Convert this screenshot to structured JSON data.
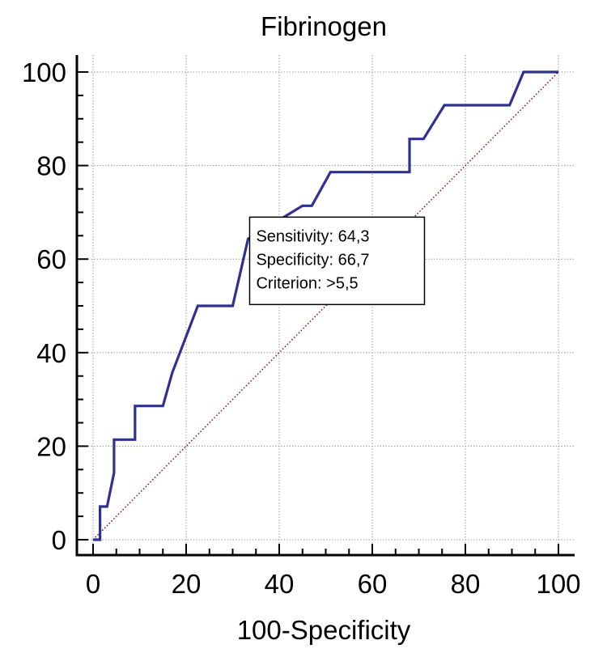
{
  "chart_data": {
    "type": "line",
    "title": "Fibrinogen",
    "xlabel": "100-Specificity",
    "ylabel": "",
    "xlim": [
      0,
      100
    ],
    "ylim": [
      0,
      100
    ],
    "xticks": [
      "0",
      "20",
      "40",
      "60",
      "80",
      "100"
    ],
    "yticks": [
      "0",
      "20",
      "40",
      "60",
      "80",
      "100"
    ],
    "grid": true,
    "series": [
      {
        "color": "#2e3192",
        "style": "step",
        "x": [
          0,
          1.5,
          1.5,
          3,
          4.5,
          4.5,
          9,
          9,
          15,
          17,
          22.5,
          30,
          33.3,
          33.3,
          45,
          47,
          51,
          68,
          68,
          71,
          75.5,
          89.5,
          92.5,
          100
        ],
        "y": [
          0,
          0,
          7.1,
          7.1,
          14.3,
          21.4,
          21.4,
          28.6,
          28.6,
          35.7,
          50,
          50,
          64.3,
          64.3,
          71.4,
          71.4,
          78.6,
          78.6,
          85.7,
          85.7,
          92.9,
          92.9,
          100,
          100
        ]
      },
      {
        "color": "#8b1a1a",
        "style": "dotted",
        "x": [
          0,
          100
        ],
        "y": [
          0,
          100
        ]
      }
    ],
    "annotation": {
      "lines": [
        "Sensitivity: 64,3",
        "Specificity: 66,7",
        "Criterion: >5,5"
      ],
      "anchor": {
        "x": 33.3,
        "y": 64.3
      }
    }
  },
  "colors": {
    "roc_curve": "#2e3192",
    "reference_line": "#8b1a1a",
    "grid": "#9a9a9a",
    "axis": "#000000"
  }
}
